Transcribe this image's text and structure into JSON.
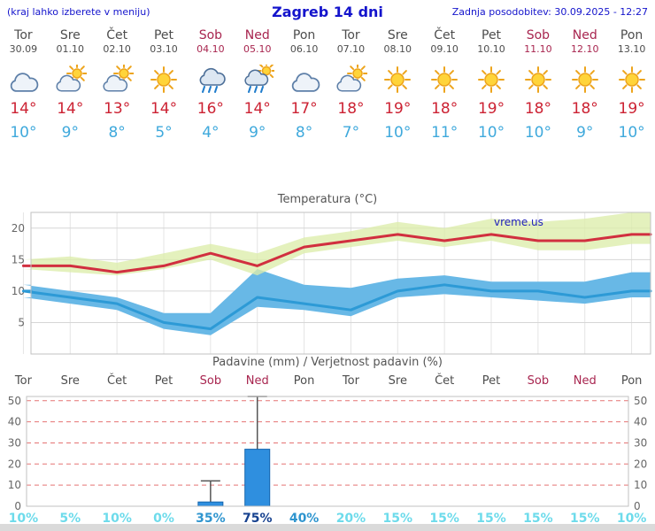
{
  "header": {
    "left_note": "(kraj lahko izberete v meniju)",
    "title": "Zagreb 14 dni",
    "updated": "Zadnja posodobitev: 30.09.2025 - 12:27"
  },
  "days": [
    {
      "name": "Tor",
      "date": "30.09",
      "weekend": false,
      "icon": "cloudy",
      "tmax": "14°",
      "tmin": "10°"
    },
    {
      "name": "Sre",
      "date": "01.10",
      "weekend": false,
      "icon": "partly-cloudy",
      "tmax": "14°",
      "tmin": "9°"
    },
    {
      "name": "Čet",
      "date": "02.10",
      "weekend": false,
      "icon": "partly-cloudy",
      "tmax": "13°",
      "tmin": "8°"
    },
    {
      "name": "Pet",
      "date": "03.10",
      "weekend": false,
      "icon": "sunny",
      "tmax": "14°",
      "tmin": "5°"
    },
    {
      "name": "Sob",
      "date": "04.10",
      "weekend": true,
      "icon": "rain",
      "tmax": "16°",
      "tmin": "4°"
    },
    {
      "name": "Ned",
      "date": "05.10",
      "weekend": true,
      "icon": "rain-sun",
      "tmax": "14°",
      "tmin": "9°"
    },
    {
      "name": "Pon",
      "date": "06.10",
      "weekend": false,
      "icon": "cloudy",
      "tmax": "17°",
      "tmin": "8°"
    },
    {
      "name": "Tor",
      "date": "07.10",
      "weekend": false,
      "icon": "partly-cloudy",
      "tmax": "18°",
      "tmin": "7°"
    },
    {
      "name": "Sre",
      "date": "08.10",
      "weekend": false,
      "icon": "sunny",
      "tmax": "19°",
      "tmin": "10°"
    },
    {
      "name": "Čet",
      "date": "09.10",
      "weekend": false,
      "icon": "sunny",
      "tmax": "18°",
      "tmin": "11°"
    },
    {
      "name": "Pet",
      "date": "10.10",
      "weekend": false,
      "icon": "sunny",
      "tmax": "19°",
      "tmin": "10°"
    },
    {
      "name": "Sob",
      "date": "11.10",
      "weekend": true,
      "icon": "sunny",
      "tmax": "18°",
      "tmin": "10°"
    },
    {
      "name": "Ned",
      "date": "12.10",
      "weekend": true,
      "icon": "sunny",
      "tmax": "18°",
      "tmin": "9°"
    },
    {
      "name": "Pon",
      "date": "13.10",
      "weekend": false,
      "icon": "sunny",
      "tmax": "19°",
      "tmin": "10°"
    }
  ],
  "chart_data": [
    {
      "type": "line",
      "title": "Temperatura (°C)",
      "watermark": "vreme.us",
      "x": [
        "Tor 30.09",
        "Sre 01.10",
        "Čet 02.10",
        "Pet 03.10",
        "Sob 04.10",
        "Ned 05.10",
        "Pon 06.10",
        "Tor 07.10",
        "Sre 08.10",
        "Čet 09.10",
        "Pet 10.10",
        "Sob 11.10",
        "Ned 12.10",
        "Pon 13.10"
      ],
      "series": [
        {
          "name": "tmax",
          "values": [
            14,
            14,
            13,
            14,
            16,
            14,
            17,
            18,
            19,
            18,
            19,
            18,
            18,
            19
          ]
        },
        {
          "name": "tmin",
          "values": [
            10,
            9,
            8,
            5,
            4,
            9,
            8,
            7,
            10,
            11,
            10,
            10,
            9,
            10
          ]
        },
        {
          "name": "tmax_hi",
          "values": [
            15,
            15.5,
            14.5,
            16,
            17.5,
            16,
            18.5,
            19.5,
            21,
            20,
            21.5,
            21,
            21.5,
            22.5
          ]
        },
        {
          "name": "tmax_lo",
          "values": [
            13.5,
            13,
            12.5,
            13.5,
            15,
            12.5,
            16,
            17,
            18,
            17,
            18,
            16.5,
            16.5,
            17.5
          ]
        },
        {
          "name": "tmin_hi",
          "values": [
            11,
            10,
            9,
            6.5,
            6.5,
            13.5,
            11,
            10.5,
            12,
            12.5,
            11.5,
            11.5,
            11.5,
            13
          ]
        },
        {
          "name": "tmin_lo",
          "values": [
            9,
            8,
            7,
            4,
            3,
            7.5,
            7,
            6,
            9,
            9.5,
            9,
            8.5,
            8,
            9
          ]
        }
      ],
      "ylim": [
        0,
        22.5
      ],
      "yticks": [
        5,
        10,
        15,
        20
      ],
      "grid": true,
      "colors": {
        "tmax_line": "#d12f3f",
        "tmin_line": "#2d9ad6",
        "tmax_band": "#dcedaa",
        "tmin_band": "#68b8e6"
      }
    },
    {
      "type": "bar",
      "title": "Padavine (mm) / Verjetnost padavin (%)",
      "categories": [
        "Tor",
        "Sre",
        "Čet",
        "Pet",
        "Sob",
        "Ned",
        "Pon",
        "Tor",
        "Sre",
        "Čet",
        "Pet",
        "Sob",
        "Ned",
        "Pon"
      ],
      "weekend_indices": [
        4,
        5,
        11,
        12
      ],
      "series": [
        {
          "name": "padavine_mm",
          "values": [
            0,
            0,
            0,
            0,
            2,
            27,
            0,
            0,
            0,
            0,
            0,
            0,
            0,
            0
          ]
        },
        {
          "name": "padavine_max_mm",
          "values": [
            0,
            0,
            0,
            0,
            12,
            52,
            0,
            0,
            0,
            0,
            0,
            0,
            0,
            0
          ]
        }
      ],
      "prob_percent": [
        10,
        5,
        10,
        0,
        35,
        75,
        40,
        20,
        15,
        15,
        15,
        15,
        15,
        10
      ],
      "ylim": [
        0,
        52
      ],
      "yticks": [
        0,
        10,
        20,
        30,
        40,
        50
      ],
      "grid": true,
      "colors": {
        "bar": "#2f8fdf",
        "bar_border": "#1565ad",
        "gridline": "#e57373",
        "whisker": "#555555"
      },
      "prob_palette": {
        "low": "#6ddbeb",
        "mid": "#2f95cf",
        "high": "#16418f"
      }
    }
  ]
}
